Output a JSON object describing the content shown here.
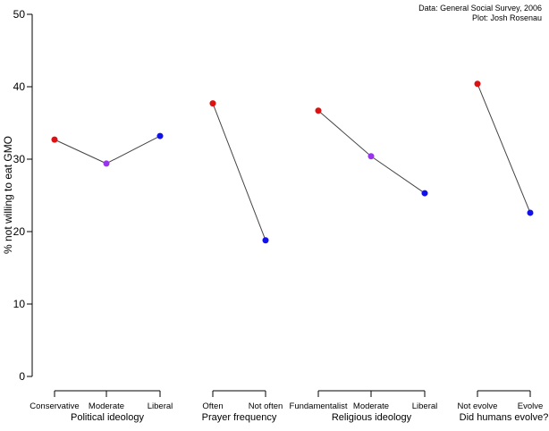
{
  "chart_data": {
    "type": "scatter",
    "ylabel": "% not willing to eat GMO",
    "ylim": [
      0,
      50
    ],
    "yticks": [
      0,
      10,
      20,
      30,
      40,
      50
    ],
    "annotations": [
      "Data: General Social Survey, 2006",
      "Plot: Josh Rosenau"
    ],
    "grid": false,
    "colors": {
      "red": "#dd1111",
      "purple": "#9933ee",
      "blue": "#1111ee"
    },
    "groups": [
      {
        "name": "Political ideology",
        "points": [
          {
            "label": "Conservative",
            "value": 32.7,
            "color": "red"
          },
          {
            "label": "Moderate",
            "value": 29.4,
            "color": "purple"
          },
          {
            "label": "Liberal",
            "value": 33.2,
            "color": "blue"
          }
        ]
      },
      {
        "name": "Prayer frequency",
        "points": [
          {
            "label": "Often",
            "value": 37.7,
            "color": "red"
          },
          {
            "label": "Not often",
            "value": 18.8,
            "color": "blue"
          }
        ]
      },
      {
        "name": "Religious ideology",
        "points": [
          {
            "label": "Fundamentalist",
            "value": 36.7,
            "color": "red"
          },
          {
            "label": "Moderate",
            "value": 30.4,
            "color": "purple"
          },
          {
            "label": "Liberal",
            "value": 25.3,
            "color": "blue"
          }
        ]
      },
      {
        "name": "Did humans evolve?",
        "points": [
          {
            "label": "Not evolve",
            "value": 40.4,
            "color": "red"
          },
          {
            "label": "Evolve",
            "value": 22.6,
            "color": "blue"
          }
        ]
      }
    ]
  }
}
